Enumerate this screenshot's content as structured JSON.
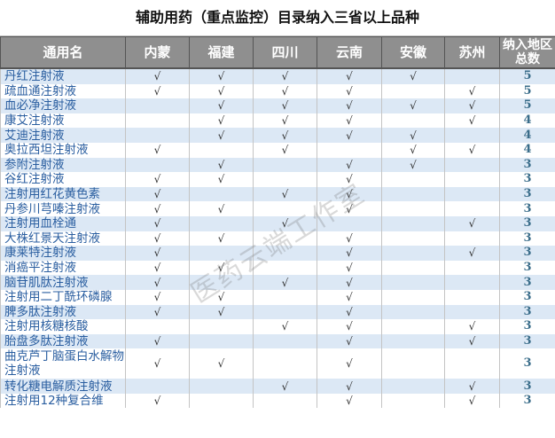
{
  "title": "辅助用药（重点监控）目录纳入三省以上品种",
  "columns": [
    "通用名",
    "内蒙",
    "福建",
    "四川",
    "云南",
    "安徽",
    "苏州",
    "纳入地区总数"
  ],
  "check_glyph": "√",
  "watermark": "医药云端工作室",
  "colors": {
    "header_bg": "#8f8f8f",
    "row_alt": "#dce8f5",
    "name_text": "#2a5ea0"
  },
  "rows": [
    {
      "name": "丹红注射液",
      "checks": [
        1,
        1,
        1,
        1,
        1,
        0
      ],
      "total": "5"
    },
    {
      "name": "疏血通注射液",
      "checks": [
        1,
        1,
        1,
        1,
        0,
        1
      ],
      "total": "5"
    },
    {
      "name": "血必净注射液",
      "checks": [
        0,
        1,
        1,
        1,
        1,
        1
      ],
      "total": "5"
    },
    {
      "name": "康艾注射液",
      "checks": [
        0,
        1,
        1,
        1,
        0,
        1
      ],
      "total": "4"
    },
    {
      "name": "艾迪注射液",
      "checks": [
        0,
        1,
        1,
        1,
        1,
        0
      ],
      "total": "4"
    },
    {
      "name": "奥拉西坦注射液",
      "checks": [
        1,
        0,
        1,
        0,
        1,
        1
      ],
      "total": "4"
    },
    {
      "name": "参附注射液",
      "checks": [
        0,
        1,
        0,
        1,
        1,
        0
      ],
      "total": "3"
    },
    {
      "name": "谷红注射液",
      "checks": [
        1,
        1,
        0,
        1,
        0,
        0
      ],
      "total": "3"
    },
    {
      "name": "注射用红花黄色素",
      "checks": [
        1,
        0,
        1,
        1,
        0,
        0
      ],
      "total": "3"
    },
    {
      "name": "丹参川芎嗪注射液",
      "checks": [
        1,
        1,
        0,
        1,
        0,
        0
      ],
      "total": "3"
    },
    {
      "name": "注射用血栓通",
      "checks": [
        1,
        0,
        1,
        0,
        0,
        1
      ],
      "total": "3"
    },
    {
      "name": "大株红景天注射液",
      "checks": [
        1,
        1,
        0,
        1,
        0,
        0
      ],
      "total": "3"
    },
    {
      "name": "康莱特注射液",
      "checks": [
        1,
        0,
        0,
        1,
        0,
        1
      ],
      "total": "3"
    },
    {
      "name": "消癌平注射液",
      "checks": [
        1,
        1,
        0,
        1,
        0,
        0
      ],
      "total": "3"
    },
    {
      "name": "脑苷肌肽注射液",
      "checks": [
        1,
        0,
        1,
        1,
        0,
        0
      ],
      "total": "3"
    },
    {
      "name": "注射用二丁酰环磷腺",
      "checks": [
        1,
        1,
        0,
        1,
        0,
        0
      ],
      "total": "3"
    },
    {
      "name": "脾多肽注射液",
      "checks": [
        1,
        1,
        0,
        1,
        0,
        0
      ],
      "total": "3"
    },
    {
      "name": "注射用核糖核酸",
      "checks": [
        0,
        0,
        1,
        1,
        0,
        1
      ],
      "total": "3"
    },
    {
      "name": "胎盘多肽注射液",
      "checks": [
        1,
        0,
        0,
        1,
        0,
        1
      ],
      "total": "3"
    },
    {
      "name": "曲克芦丁脑蛋白水解物注射液",
      "checks": [
        1,
        1,
        0,
        1,
        0,
        0
      ],
      "total": "3"
    },
    {
      "name": "转化糖电解质注射液",
      "checks": [
        0,
        0,
        1,
        1,
        0,
        1
      ],
      "total": "3"
    },
    {
      "name": "注射用12种复合维",
      "checks": [
        1,
        0,
        0,
        1,
        0,
        1
      ],
      "total": "3"
    }
  ]
}
